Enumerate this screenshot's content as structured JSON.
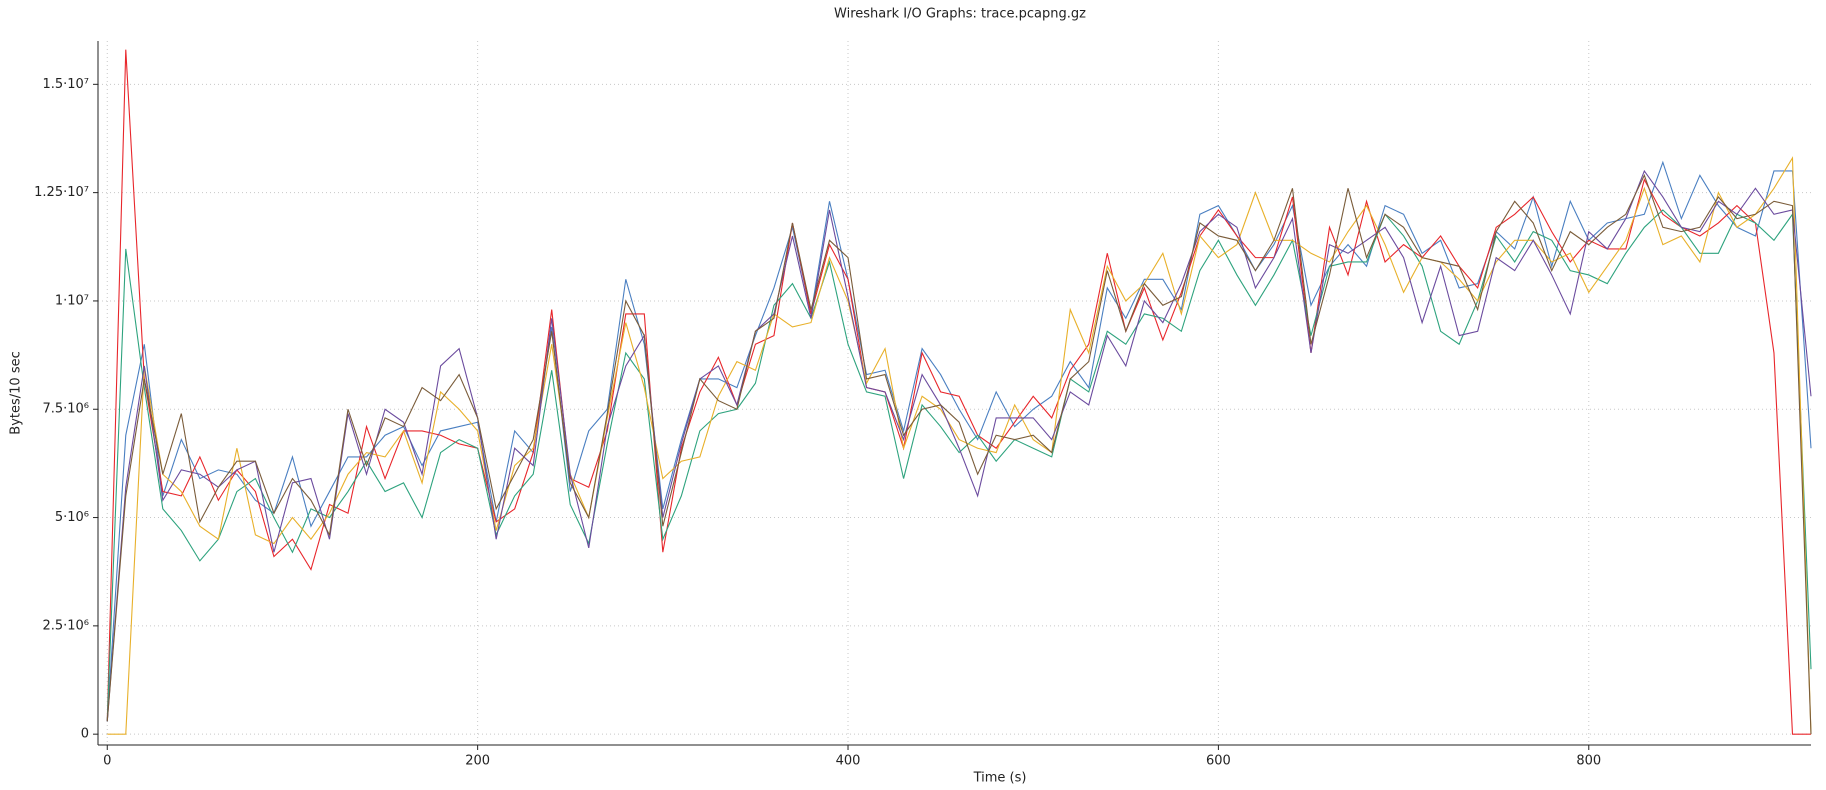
{
  "chart_data": {
    "type": "line",
    "title": "Wireshark I/O Graphs: trace.pcapng.gz",
    "xlabel": "Time (s)",
    "ylabel": "Bytes/10 sec",
    "x": [
      0,
      10,
      20,
      30,
      40,
      50,
      60,
      70,
      80,
      90,
      100,
      110,
      120,
      130,
      140,
      150,
      160,
      170,
      180,
      190,
      200,
      210,
      220,
      230,
      240,
      250,
      260,
      270,
      280,
      290,
      300,
      310,
      320,
      330,
      340,
      350,
      360,
      370,
      380,
      390,
      400,
      410,
      420,
      430,
      440,
      450,
      460,
      470,
      480,
      490,
      500,
      510,
      520,
      530,
      540,
      550,
      560,
      570,
      580,
      590,
      600,
      610,
      620,
      630,
      640,
      650,
      660,
      670,
      680,
      690,
      700,
      710,
      720,
      730,
      740,
      750,
      760,
      770,
      780,
      790,
      800,
      810,
      820,
      830,
      840,
      850,
      860,
      870,
      880,
      890,
      900,
      910,
      920
    ],
    "xlim": [
      -5,
      920
    ],
    "xticks": [
      0,
      200,
      400,
      600,
      800
    ],
    "ylim": [
      -250000,
      16000000
    ],
    "yticks": [
      0,
      {
        "value": 2500000,
        "label": "2.5·10⁶"
      },
      {
        "value": 5000000,
        "label": "5·10⁶"
      },
      {
        "value": 7500000,
        "label": "7.5·10⁶"
      },
      {
        "value": 10000000,
        "label": "1·10⁷"
      },
      {
        "value": 12500000,
        "label": "1.25·10⁷"
      },
      {
        "value": 15000000,
        "label": "1.5·10⁷"
      }
    ],
    "grid": true,
    "series": [
      {
        "color": "#4a7fc1",
        "values": [
          300000.0,
          6900000.0,
          9000000.0,
          5500000.0,
          6800000.0,
          5900000.0,
          6100000.0,
          6000000.0,
          5400000.0,
          5100000.0,
          6400000.0,
          4800000.0,
          5600000.0,
          6400000.0,
          6400000.0,
          6900000.0,
          7100000.0,
          6200000.0,
          7000000.0,
          7100000.0,
          7200000.0,
          4900000.0,
          7000000.0,
          6500000.0,
          9400000.0,
          5600000.0,
          7000000.0,
          7500000.0,
          10500000.0,
          9000000.0,
          5200000.0,
          6800000.0,
          8200000.0,
          8200000.0,
          8000000.0,
          9200000.0,
          10300000.0,
          11700000.0,
          9700000.0,
          12300000.0,
          10500000.0,
          8300000.0,
          8400000.0,
          7000000.0,
          8900000.0,
          8300000.0,
          7500000.0,
          6800000.0,
          7900000.0,
          7100000.0,
          7500000.0,
          7800000.0,
          8600000.0,
          8000000.0,
          10300000.0,
          9600000.0,
          10500000.0,
          10500000.0,
          9800000.0,
          12000000.0,
          12200000.0,
          11500000.0,
          10700000.0,
          11300000.0,
          12200000.0,
          9900000.0,
          10800000.0,
          11300000.0,
          10800000.0,
          12200000.0,
          12000000.0,
          11100000.0,
          11400000.0,
          10300000.0,
          10400000.0,
          11600000.0,
          11200000.0,
          12400000.0,
          10800000.0,
          12300000.0,
          11400000.0,
          11800000.0,
          11900000.0,
          12000000.0,
          13200000.0,
          11900000.0,
          12900000.0,
          12200000.0,
          11700000.0,
          11500000.0,
          13000000.0,
          13000000.0,
          6600000.0
        ]
      },
      {
        "color": "#e8262b",
        "values": [
          300000.0,
          15800000.0,
          8200000.0,
          5600000.0,
          5500000.0,
          6400000.0,
          5400000.0,
          6100000.0,
          5600000.0,
          4100000.0,
          4500000.0,
          3800000.0,
          5300000.0,
          5100000.0,
          7100000.0,
          5900000.0,
          7000000.0,
          7000000.0,
          6900000.0,
          6700000.0,
          6600000.0,
          4900000.0,
          5200000.0,
          6500000.0,
          9800000.0,
          5900000.0,
          5700000.0,
          7000000.0,
          9700000.0,
          9700000.0,
          4200000.0,
          6600000.0,
          7900000.0,
          8700000.0,
          7600000.0,
          9000000.0,
          9200000.0,
          11800000.0,
          9700000.0,
          11300000.0,
          10500000.0,
          8000000.0,
          7900000.0,
          6600000.0,
          8800000.0,
          7900000.0,
          7800000.0,
          6900000.0,
          6600000.0,
          7200000.0,
          7800000.0,
          7300000.0,
          8400000.0,
          9000000.0,
          11100000.0,
          9300000.0,
          10300000.0,
          9100000.0,
          10200000.0,
          11500000.0,
          12100000.0,
          11500000.0,
          11000000.0,
          11000000.0,
          12400000.0,
          8800000.0,
          11700000.0,
          10600000.0,
          12300000.0,
          10900000.0,
          11300000.0,
          11000000.0,
          11500000.0,
          10800000.0,
          10300000.0,
          11700000.0,
          12000000.0,
          12400000.0,
          11600000.0,
          10900000.0,
          11400000.0,
          11200000.0,
          11200000.0,
          12800000.0,
          12000000.0,
          11700000.0,
          11500000.0,
          11800000.0,
          12200000.0,
          11800000.0,
          8800000.0,
          0,
          0
        ]
      },
      {
        "color": "#2ea37e",
        "values": [
          300000.0,
          11200000.0,
          8000000.0,
          5200000.0,
          4700000.0,
          4000000.0,
          4500000.0,
          5600000.0,
          5900000.0,
          5000000.0,
          4200000.0,
          5200000.0,
          5000000.0,
          5600000.0,
          6300000.0,
          5600000.0,
          5800000.0,
          5000000.0,
          6500000.0,
          6800000.0,
          6600000.0,
          4600000.0,
          5500000.0,
          6000000.0,
          8400000.0,
          5300000.0,
          4400000.0,
          6700000.0,
          8800000.0,
          8200000.0,
          4500000.0,
          5500000.0,
          7000000.0,
          7400000.0,
          7500000.0,
          8100000.0,
          9900000.0,
          10400000.0,
          9600000.0,
          10900000.0,
          9000000.0,
          7900000.0,
          7800000.0,
          5900000.0,
          7600000.0,
          7100000.0,
          6500000.0,
          6900000.0,
          6300000.0,
          6800000.0,
          6600000.0,
          6400000.0,
          8200000.0,
          7900000.0,
          9300000.0,
          9000000.0,
          9700000.0,
          9600000.0,
          9300000.0,
          10700000.0,
          11400000.0,
          10600000.0,
          9900000.0,
          10600000.0,
          11400000.0,
          9200000.0,
          10800000.0,
          10900000.0,
          10900000.0,
          12000000.0,
          11500000.0,
          10800000.0,
          9300000.0,
          9000000.0,
          10000000.0,
          11500000.0,
          10900000.0,
          11600000.0,
          11400000.0,
          10700000.0,
          10600000.0,
          10400000.0,
          11100000.0,
          11700000.0,
          12100000.0,
          11700000.0,
          11100000.0,
          11100000.0,
          12000000.0,
          11800000.0,
          11400000.0,
          12000000.0,
          1500000.0
        ]
      },
      {
        "color": "#e8b02a",
        "values": [
          0,
          0,
          8500000.0,
          6000000.0,
          5600000.0,
          4800000.0,
          4500000.0,
          6600000.0,
          4600000.0,
          4400000.0,
          5000000.0,
          4500000.0,
          5100000.0,
          6000000.0,
          6500000.0,
          6400000.0,
          7000000.0,
          5800000.0,
          7900000.0,
          7500000.0,
          7000000.0,
          4700000.0,
          6200000.0,
          6600000.0,
          9000000.0,
          6000000.0,
          5000000.0,
          7300000.0,
          9500000.0,
          8000000.0,
          5900000.0,
          6300000.0,
          6400000.0,
          7800000.0,
          8600000.0,
          8400000.0,
          9700000.0,
          9400000.0,
          9500000.0,
          11000000.0,
          10000000.0,
          8100000.0,
          8900000.0,
          6600000.0,
          7800000.0,
          7500000.0,
          6800000.0,
          6600000.0,
          6500000.0,
          7600000.0,
          6800000.0,
          6500000.0,
          9800000.0,
          8800000.0,
          10800000.0,
          10000000.0,
          10400000.0,
          11100000.0,
          9700000.0,
          11500000.0,
          11000000.0,
          11300000.0,
          12500000.0,
          11400000.0,
          11400000.0,
          11100000.0,
          10900000.0,
          11600000.0,
          12200000.0,
          11300000.0,
          10200000.0,
          11000000.0,
          10900000.0,
          10500000.0,
          10000000.0,
          10900000.0,
          11400000.0,
          11400000.0,
          10900000.0,
          11100000.0,
          10200000.0,
          10800000.0,
          11400000.0,
          12600000.0,
          11300000.0,
          11500000.0,
          10900000.0,
          12500000.0,
          11700000.0,
          12000000.0,
          12600000.0,
          13300000.0,
          0
        ]
      },
      {
        "color": "#6b4b9e",
        "values": [
          300000.0,
          5700000.0,
          8500000.0,
          5400000.0,
          6100000.0,
          6000000.0,
          5700000.0,
          6100000.0,
          6300000.0,
          4200000.0,
          5800000.0,
          5900000.0,
          4500000.0,
          7400000.0,
          6000000.0,
          7500000.0,
          7200000.0,
          6000000.0,
          8500000.0,
          8900000.0,
          7300000.0,
          4500000.0,
          6600000.0,
          6200000.0,
          9600000.0,
          6000000.0,
          4300000.0,
          7100000.0,
          8500000.0,
          9200000.0,
          5000000.0,
          6700000.0,
          8200000.0,
          8500000.0,
          7600000.0,
          9300000.0,
          9700000.0,
          11500000.0,
          9600000.0,
          12100000.0,
          10100000.0,
          8000000.0,
          7900000.0,
          6800000.0,
          8300000.0,
          7600000.0,
          6600000.0,
          5500000.0,
          7300000.0,
          7300000.0,
          7300000.0,
          6800000.0,
          7900000.0,
          7600000.0,
          9200000.0,
          8500000.0,
          10000000.0,
          9500000.0,
          10400000.0,
          11600000.0,
          12000000.0,
          11700000.0,
          10300000.0,
          11000000.0,
          11900000.0,
          8800000.0,
          11300000.0,
          11100000.0,
          11400000.0,
          11700000.0,
          11000000.0,
          9500000.0,
          10800000.0,
          9200000.0,
          9300000.0,
          11000000.0,
          10700000.0,
          11400000.0,
          10600000.0,
          9700000.0,
          11600000.0,
          11200000.0,
          11900000.0,
          13000000.0,
          12400000.0,
          11700000.0,
          11600000.0,
          12300000.0,
          12000000.0,
          12600000.0,
          12000000.0,
          12100000.0,
          7800000.0
        ]
      },
      {
        "color": "#7a5c3a",
        "values": [
          300000.0,
          5500000.0,
          8200000.0,
          6000000.0,
          7400000.0,
          4900000.0,
          5700000.0,
          6300000.0,
          6300000.0,
          5100000.0,
          5900000.0,
          5400000.0,
          4600000.0,
          7500000.0,
          6200000.0,
          7300000.0,
          7100000.0,
          8000000.0,
          7700000.0,
          8300000.0,
          7300000.0,
          5200000.0,
          6000000.0,
          6800000.0,
          9300000.0,
          5800000.0,
          5000000.0,
          7400000.0,
          10000000.0,
          9200000.0,
          4800000.0,
          6500000.0,
          8200000.0,
          7700000.0,
          7500000.0,
          9300000.0,
          9600000.0,
          11800000.0,
          9800000.0,
          11400000.0,
          11000000.0,
          8200000.0,
          8300000.0,
          6900000.0,
          7500000.0,
          7600000.0,
          7200000.0,
          6000000.0,
          6900000.0,
          6800000.0,
          6900000.0,
          6500000.0,
          8200000.0,
          8600000.0,
          10700000.0,
          9300000.0,
          10400000.0,
          9900000.0,
          10100000.0,
          11800000.0,
          11500000.0,
          11400000.0,
          10700000.0,
          11400000.0,
          12600000.0,
          9000000.0,
          10600000.0,
          12600000.0,
          11000000.0,
          12000000.0,
          11700000.0,
          11000000.0,
          10900000.0,
          10800000.0,
          9800000.0,
          11600000.0,
          12300000.0,
          11800000.0,
          10700000.0,
          11600000.0,
          11300000.0,
          11700000.0,
          12000000.0,
          12900000.0,
          11700000.0,
          11600000.0,
          11700000.0,
          12400000.0,
          11900000.0,
          12000000.0,
          12300000.0,
          12200000.0,
          0
        ]
      }
    ]
  }
}
